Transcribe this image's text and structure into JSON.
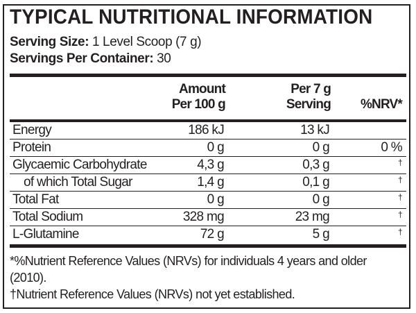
{
  "title": "TYPICAL NUTRITIONAL INFORMATION",
  "serving_size": {
    "label": "Serving Size:",
    "value": "1 Level Scoop (7 g)"
  },
  "servings_per_container": {
    "label": "Servings Per Container:",
    "value": "30"
  },
  "columns": {
    "col1": [
      "Amount",
      "Per 100 g"
    ],
    "col2": [
      "Per 7 g",
      "Serving"
    ],
    "col3": "%NRV*"
  },
  "rows": [
    {
      "name": "Energy",
      "per100": "186 kJ",
      "serving": "13 kJ",
      "nrv": ""
    },
    {
      "name": "Protein",
      "per100": "0 g",
      "serving": "0 g",
      "nrv": "0 %"
    },
    {
      "name": "Glycaemic Carbohydrate",
      "per100": "4,3 g",
      "serving": "0,3 g",
      "nrv": "†"
    },
    {
      "name": "  of which Total Sugar",
      "per100": "1,4 g",
      "serving": "0,1 g",
      "nrv": "†"
    },
    {
      "name": "Total Fat",
      "per100": "0 g",
      "serving": "0 g",
      "nrv": "†"
    },
    {
      "name": "Total Sodium",
      "per100": "328 mg",
      "serving": "23 mg",
      "nrv": "†"
    },
    {
      "name": "L-Glutamine",
      "per100": "72 g",
      "serving": "5 g",
      "nrv": "†"
    }
  ],
  "footnotes": [
    "*%Nutrient Reference Values (NRVs) for individuals 4 years and older (2010).",
    "†Nutrient Reference Values (NRVs) not yet established."
  ]
}
